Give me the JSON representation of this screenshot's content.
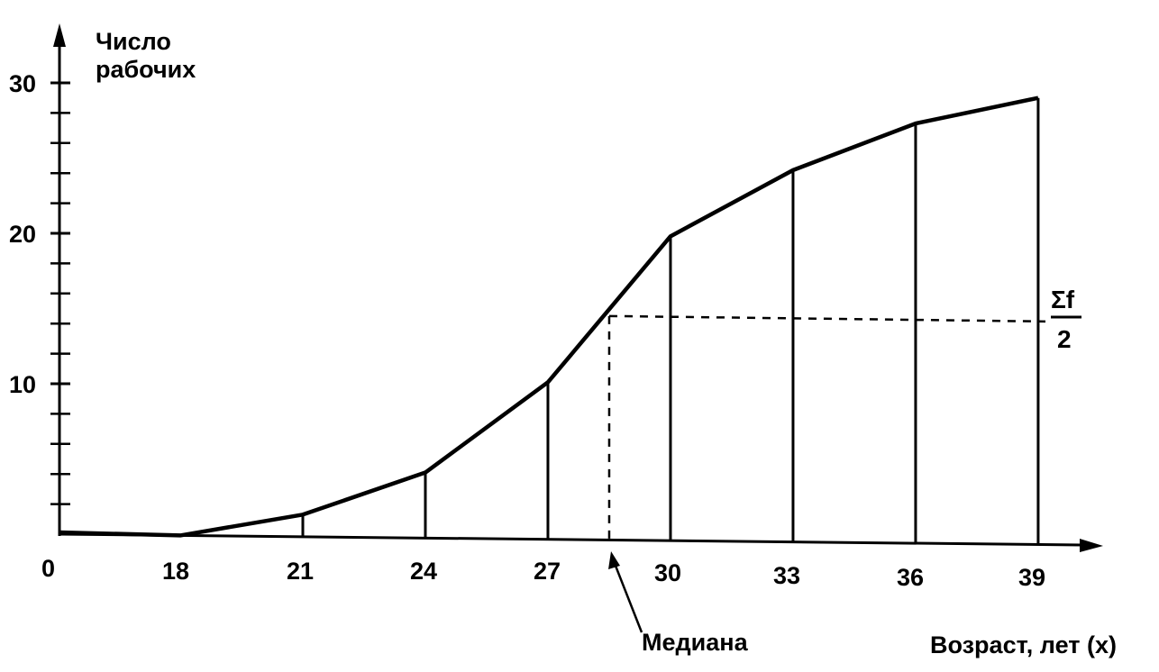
{
  "chart_data": {
    "type": "line",
    "title": "",
    "ylabel_line1": "Число",
    "ylabel_line2": "рабочих",
    "xlabel": "Возраст, лет (x)",
    "x_origin_label": "0",
    "x": [
      18,
      21,
      24,
      27,
      30,
      33,
      36,
      39
    ],
    "xticks": [
      "18",
      "21",
      "24",
      "27",
      "30",
      "33",
      "36",
      "39"
    ],
    "y": [
      0,
      1.3,
      4.1,
      10.1,
      19.8,
      24.2,
      27.3,
      29.0
    ],
    "yticks": [
      "10",
      "20",
      "30"
    ],
    "ylim": [
      0,
      33
    ],
    "grid": false,
    "median": {
      "label": "Медиана",
      "x": 28.5,
      "y": 14.5,
      "sum_label": "Σf",
      "denominator_label": "2"
    }
  }
}
